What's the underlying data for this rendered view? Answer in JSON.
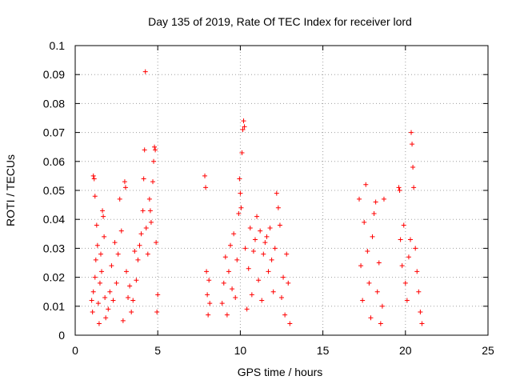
{
  "chart_data": {
    "type": "scatter",
    "title": "Day 135 of 2019, Rate Of TEC Index for receiver lord",
    "xlabel": "GPS time / hours",
    "ylabel": "ROTI / TECUs",
    "xlim": [
      0,
      25
    ],
    "ylim": [
      0,
      0.1
    ],
    "x_ticks": [
      0,
      5,
      10,
      15,
      20,
      25
    ],
    "y_ticks": [
      0,
      0.01,
      0.02,
      0.03,
      0.04,
      0.05,
      0.06,
      0.07,
      0.08,
      0.09,
      0.1
    ],
    "x_tick_labels": [
      "0",
      "5",
      "10",
      "15",
      "20",
      "25"
    ],
    "y_tick_labels": [
      "0",
      "0.01",
      "0.02",
      "0.03",
      "0.04",
      "0.05",
      "0.06",
      "0.07",
      "0.08",
      "0.09",
      "0.1"
    ],
    "grid": true,
    "marker": "+",
    "marker_color": "#ff0000",
    "series": [
      {
        "points": [
          [
            1.0,
            0.012
          ],
          [
            1.05,
            0.008
          ],
          [
            1.1,
            0.015
          ],
          [
            1.1,
            0.055
          ],
          [
            1.15,
            0.054
          ],
          [
            1.2,
            0.048
          ],
          [
            1.2,
            0.02
          ],
          [
            1.25,
            0.026
          ],
          [
            1.3,
            0.038
          ],
          [
            1.35,
            0.031
          ],
          [
            1.4,
            0.011
          ],
          [
            1.45,
            0.004
          ],
          [
            1.5,
            0.018
          ],
          [
            1.55,
            0.028
          ],
          [
            1.6,
            0.022
          ],
          [
            1.65,
            0.043
          ],
          [
            1.7,
            0.041
          ],
          [
            1.75,
            0.034
          ],
          [
            1.8,
            0.013
          ],
          [
            1.85,
            0.006
          ],
          [
            2.0,
            0.009
          ],
          [
            2.1,
            0.015
          ],
          [
            2.2,
            0.024
          ],
          [
            2.3,
            0.012
          ],
          [
            2.4,
            0.032
          ],
          [
            2.5,
            0.018
          ],
          [
            2.6,
            0.028
          ],
          [
            2.7,
            0.047
          ],
          [
            2.8,
            0.036
          ],
          [
            2.9,
            0.005
          ],
          [
            3.0,
            0.053
          ],
          [
            3.05,
            0.051
          ],
          [
            3.1,
            0.022
          ],
          [
            3.2,
            0.013
          ],
          [
            3.3,
            0.017
          ],
          [
            3.4,
            0.008
          ],
          [
            3.5,
            0.012
          ],
          [
            3.6,
            0.029
          ],
          [
            3.7,
            0.019
          ],
          [
            3.8,
            0.026
          ],
          [
            3.9,
            0.031
          ],
          [
            4.0,
            0.035
          ],
          [
            4.1,
            0.043
          ],
          [
            4.15,
            0.054
          ],
          [
            4.2,
            0.064
          ],
          [
            4.25,
            0.091
          ],
          [
            4.3,
            0.037
          ],
          [
            4.4,
            0.028
          ],
          [
            4.5,
            0.047
          ],
          [
            4.55,
            0.043
          ],
          [
            4.6,
            0.039
          ],
          [
            4.7,
            0.053
          ],
          [
            4.75,
            0.06
          ],
          [
            4.8,
            0.065
          ],
          [
            4.85,
            0.064
          ],
          [
            4.9,
            0.032
          ],
          [
            4.95,
            0.008
          ],
          [
            5.0,
            0.014
          ],
          [
            7.85,
            0.055
          ],
          [
            7.9,
            0.051
          ],
          [
            7.95,
            0.022
          ],
          [
            8.0,
            0.014
          ],
          [
            8.05,
            0.007
          ],
          [
            8.1,
            0.019
          ],
          [
            8.15,
            0.011
          ],
          [
            8.9,
            0.011
          ],
          [
            9.0,
            0.018
          ],
          [
            9.1,
            0.027
          ],
          [
            9.2,
            0.007
          ],
          [
            9.3,
            0.022
          ],
          [
            9.4,
            0.031
          ],
          [
            9.5,
            0.016
          ],
          [
            9.6,
            0.035
          ],
          [
            9.7,
            0.013
          ],
          [
            9.8,
            0.026
          ],
          [
            9.9,
            0.042
          ],
          [
            9.95,
            0.054
          ],
          [
            10.0,
            0.049
          ],
          [
            10.05,
            0.044
          ],
          [
            10.1,
            0.063
          ],
          [
            10.15,
            0.071
          ],
          [
            10.2,
            0.074
          ],
          [
            10.25,
            0.072
          ],
          [
            10.3,
            0.03
          ],
          [
            10.4,
            0.009
          ],
          [
            10.5,
            0.023
          ],
          [
            10.6,
            0.037
          ],
          [
            10.7,
            0.014
          ],
          [
            10.8,
            0.029
          ],
          [
            10.9,
            0.033
          ],
          [
            11.0,
            0.041
          ],
          [
            11.1,
            0.019
          ],
          [
            11.2,
            0.036
          ],
          [
            11.3,
            0.012
          ],
          [
            11.4,
            0.028
          ],
          [
            11.5,
            0.032
          ],
          [
            11.6,
            0.034
          ],
          [
            11.7,
            0.022
          ],
          [
            11.8,
            0.037
          ],
          [
            11.9,
            0.026
          ],
          [
            12.0,
            0.015
          ],
          [
            12.1,
            0.03
          ],
          [
            12.2,
            0.049
          ],
          [
            12.3,
            0.044
          ],
          [
            12.4,
            0.038
          ],
          [
            12.5,
            0.013
          ],
          [
            12.6,
            0.02
          ],
          [
            12.7,
            0.007
          ],
          [
            12.8,
            0.028
          ],
          [
            12.9,
            0.018
          ],
          [
            13.0,
            0.004
          ],
          [
            17.2,
            0.047
          ],
          [
            17.3,
            0.024
          ],
          [
            17.4,
            0.012
          ],
          [
            17.5,
            0.039
          ],
          [
            17.6,
            0.052
          ],
          [
            17.7,
            0.029
          ],
          [
            17.8,
            0.018
          ],
          [
            17.9,
            0.006
          ],
          [
            18.0,
            0.034
          ],
          [
            18.1,
            0.042
          ],
          [
            18.2,
            0.046
          ],
          [
            18.3,
            0.015
          ],
          [
            18.4,
            0.025
          ],
          [
            18.5,
            0.004
          ],
          [
            18.6,
            0.01
          ],
          [
            18.7,
            0.047
          ],
          [
            19.6,
            0.051
          ],
          [
            19.65,
            0.05
          ],
          [
            19.7,
            0.033
          ],
          [
            19.8,
            0.024
          ],
          [
            19.9,
            0.038
          ],
          [
            20.0,
            0.018
          ],
          [
            20.1,
            0.012
          ],
          [
            20.2,
            0.027
          ],
          [
            20.3,
            0.033
          ],
          [
            20.35,
            0.07
          ],
          [
            20.4,
            0.066
          ],
          [
            20.45,
            0.058
          ],
          [
            20.5,
            0.051
          ],
          [
            20.6,
            0.03
          ],
          [
            20.7,
            0.022
          ],
          [
            20.8,
            0.015
          ],
          [
            20.9,
            0.008
          ],
          [
            21.0,
            0.004
          ]
        ]
      }
    ]
  }
}
